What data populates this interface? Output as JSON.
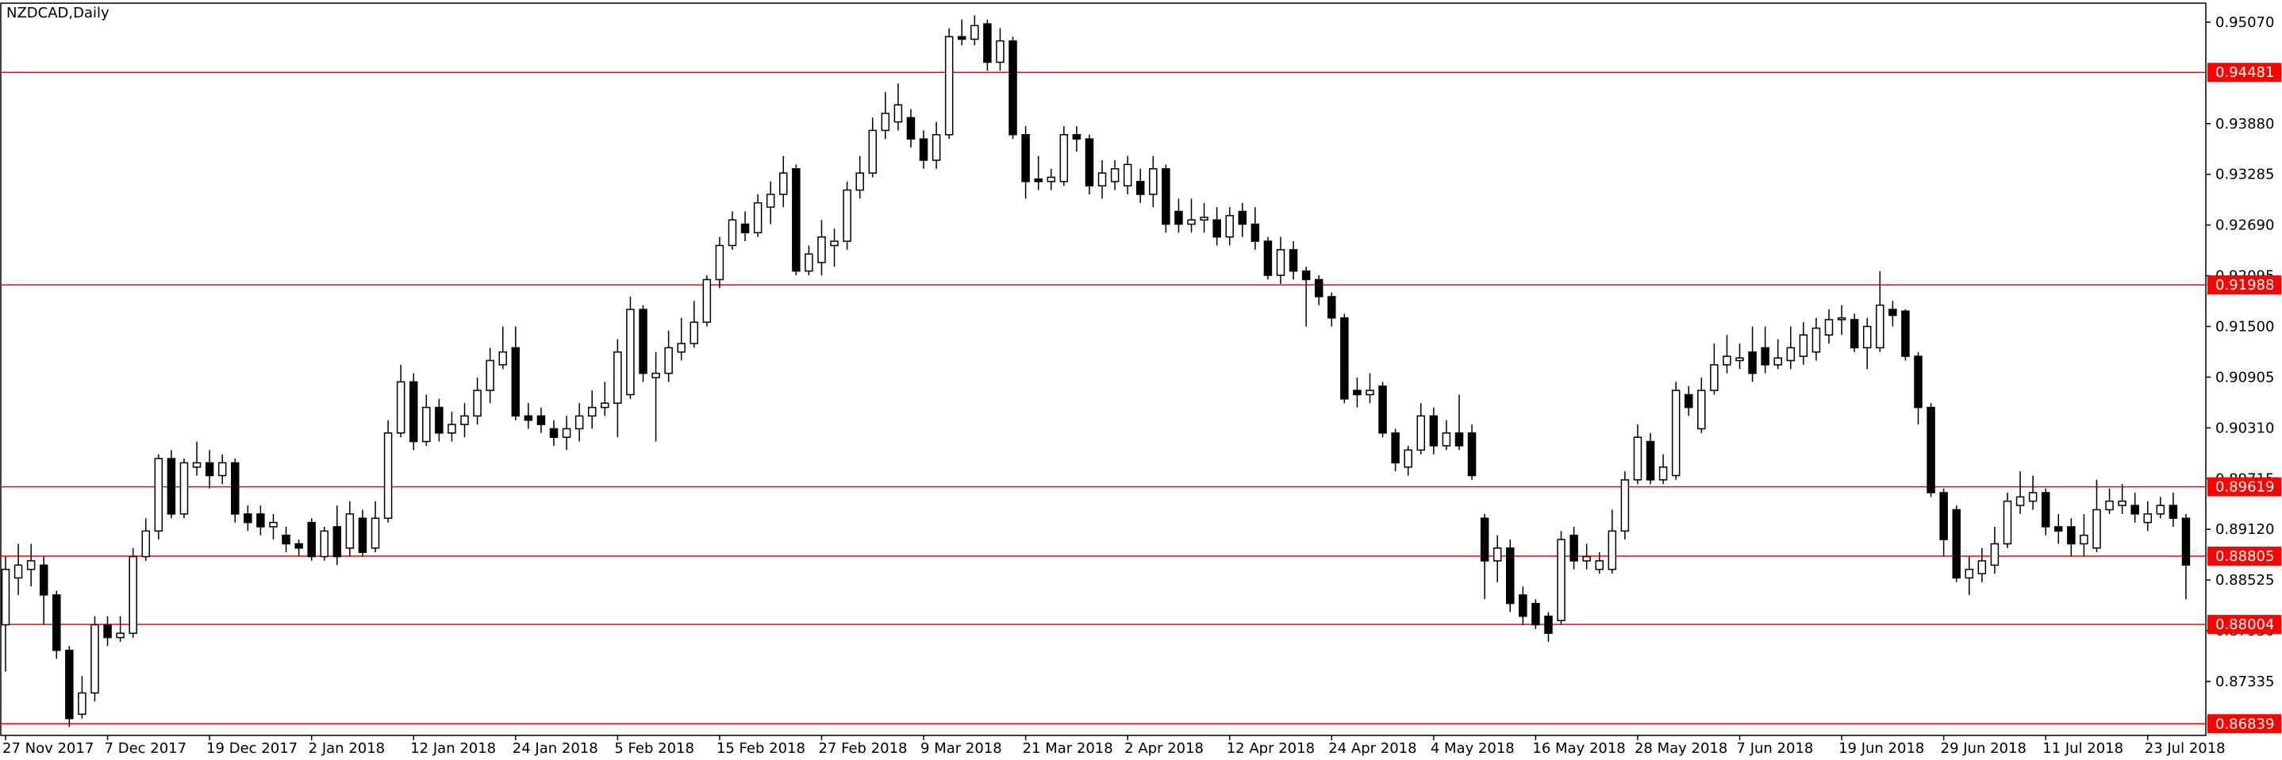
{
  "chart_data": {
    "type": "candlestick",
    "title": "NZDCAD,Daily",
    "up_color": "#ffffff",
    "down_color": "#000000",
    "level_color": "#ff0000",
    "categories": [
      "27 Nov 2017",
      null,
      null,
      null,
      null,
      null,
      null,
      null,
      "7 Dec 2017",
      null,
      null,
      null,
      null,
      null,
      null,
      null,
      "19 Dec 2017",
      null,
      null,
      null,
      null,
      null,
      null,
      null,
      "2 Jan 2018",
      null,
      null,
      null,
      null,
      null,
      null,
      null,
      "12 Jan 2018",
      null,
      null,
      null,
      null,
      null,
      null,
      null,
      "24 Jan 2018",
      null,
      null,
      null,
      null,
      null,
      null,
      null,
      "5 Feb 2018",
      null,
      null,
      null,
      null,
      null,
      null,
      null,
      "15 Feb 2018",
      null,
      null,
      null,
      null,
      null,
      null,
      null,
      "27 Feb 2018",
      null,
      null,
      null,
      null,
      null,
      null,
      null,
      "9 Mar 2018",
      null,
      null,
      null,
      null,
      null,
      null,
      null,
      "21 Mar 2018",
      null,
      null,
      null,
      null,
      null,
      null,
      null,
      "2 Apr 2018",
      null,
      null,
      null,
      null,
      null,
      null,
      null,
      "12 Apr 2018",
      null,
      null,
      null,
      null,
      null,
      null,
      null,
      "24 Apr 2018",
      null,
      null,
      null,
      null,
      null,
      null,
      null,
      "4 May 2018",
      null,
      null,
      null,
      null,
      null,
      null,
      null,
      "16 May 2018",
      null,
      null,
      null,
      null,
      null,
      null,
      null,
      "28 May 2018",
      null,
      null,
      null,
      null,
      null,
      null,
      null,
      "7 Jun 2018",
      null,
      null,
      null,
      null,
      null,
      null,
      null,
      "19 Jun 2018",
      null,
      null,
      null,
      null,
      null,
      null,
      null,
      "29 Jun 2018",
      null,
      null,
      null,
      null,
      null,
      null,
      null,
      "11 Jul 2018",
      null,
      null,
      null,
      null,
      null,
      null,
      null,
      "23 Jul 2018",
      null,
      null,
      null
    ],
    "open": [
      0.88,
      0.8855,
      0.8865,
      0.887,
      0.8835,
      0.877,
      0.8695,
      0.872,
      0.88,
      0.8785,
      0.879,
      0.888,
      0.891,
      0.8995,
      0.893,
      0.8985,
      0.899,
      0.8975,
      0.899,
      0.893,
      0.893,
      0.8915,
      0.8905,
      0.8895,
      0.892,
      0.888,
      0.8915,
      0.889,
      0.8925,
      0.889,
      0.8925,
      0.9025,
      0.9085,
      0.9015,
      0.9055,
      0.9025,
      0.9035,
      0.9045,
      0.9075,
      0.9105,
      0.9125,
      0.9045,
      0.9045,
      0.903,
      0.902,
      0.903,
      0.9045,
      0.9055,
      0.906,
      0.907,
      0.917,
      0.909,
      0.9095,
      0.912,
      0.913,
      0.9155,
      0.9205,
      0.9245,
      0.927,
      0.926,
      0.929,
      0.9305,
      0.9335,
      0.9215,
      0.9225,
      0.9245,
      0.925,
      0.931,
      0.933,
      0.938,
      0.939,
      0.9395,
      0.937,
      0.9345,
      0.9375,
      0.949,
      0.9487,
      0.9505,
      0.946,
      0.9485,
      0.9375,
      0.9323,
      0.932,
      0.932,
      0.9375,
      0.937,
      0.9315,
      0.932,
      0.9315,
      0.932,
      0.9305,
      0.9335,
      0.9285,
      0.927,
      0.9275,
      0.9275,
      0.9255,
      0.9285,
      0.927,
      0.925,
      0.921,
      0.924,
      0.9215,
      0.9205,
      0.9185,
      0.916,
      0.9075,
      0.907,
      0.908,
      0.9025,
      0.8985,
      0.9005,
      0.9045,
      0.901,
      0.9025,
      0.9025,
      0.8925,
      0.8875,
      0.889,
      0.8835,
      0.8825,
      0.881,
      0.8805,
      0.8905,
      0.8875,
      0.8865,
      0.8865,
      0.891,
      0.897,
      0.9015,
      0.897,
      0.8975,
      0.907,
      0.903,
      0.9075,
      0.9105,
      0.911,
      0.912,
      0.9125,
      0.9105,
      0.911,
      0.9115,
      0.912,
      0.914,
      0.9158,
      0.9158,
      0.9125,
      0.9125,
      0.917,
      0.9168,
      0.9115,
      0.9055,
      0.8955,
      0.8935,
      0.8855,
      0.886,
      0.887,
      0.8895,
      0.894,
      0.8945,
      0.8955,
      0.8915,
      0.8915,
      0.8895,
      0.889,
      0.8935,
      0.894,
      0.894,
      0.892,
      0.893,
      0.894,
      0.8925
    ],
    "high": [
      0.888,
      0.8895,
      0.8895,
      0.888,
      0.884,
      0.8775,
      0.874,
      0.881,
      0.881,
      0.881,
      0.889,
      0.8925,
      0.9,
      0.9005,
      0.8995,
      0.9015,
      0.9005,
      0.9,
      0.8995,
      0.894,
      0.894,
      0.893,
      0.8915,
      0.89,
      0.8925,
      0.8915,
      0.894,
      0.8945,
      0.8935,
      0.8945,
      0.904,
      0.9105,
      0.9095,
      0.907,
      0.9065,
      0.905,
      0.906,
      0.909,
      0.9125,
      0.915,
      0.915,
      0.906,
      0.9055,
      0.904,
      0.9045,
      0.906,
      0.9075,
      0.9085,
      0.9135,
      0.9185,
      0.9175,
      0.912,
      0.9145,
      0.916,
      0.918,
      0.921,
      0.9255,
      0.9285,
      0.9285,
      0.9305,
      0.932,
      0.935,
      0.934,
      0.9245,
      0.9275,
      0.9265,
      0.932,
      0.935,
      0.9395,
      0.9425,
      0.9435,
      0.9405,
      0.938,
      0.939,
      0.95,
      0.951,
      0.9515,
      0.951,
      0.95,
      0.949,
      0.9385,
      0.935,
      0.9335,
      0.9385,
      0.9385,
      0.9375,
      0.9345,
      0.9345,
      0.935,
      0.9335,
      0.935,
      0.934,
      0.93,
      0.93,
      0.9295,
      0.929,
      0.929,
      0.9295,
      0.929,
      0.9255,
      0.9255,
      0.925,
      0.922,
      0.921,
      0.919,
      0.9165,
      0.909,
      0.9095,
      0.9085,
      0.903,
      0.901,
      0.906,
      0.9055,
      0.904,
      0.907,
      0.9035,
      0.893,
      0.8905,
      0.89,
      0.8845,
      0.883,
      0.8815,
      0.891,
      0.8915,
      0.8895,
      0.8885,
      0.8935,
      0.898,
      0.9035,
      0.9025,
      0.9,
      0.9085,
      0.908,
      0.909,
      0.913,
      0.914,
      0.913,
      0.915,
      0.915,
      0.9135,
      0.915,
      0.9155,
      0.916,
      0.917,
      0.9175,
      0.9165,
      0.916,
      0.9215,
      0.918,
      0.917,
      0.912,
      0.906,
      0.896,
      0.894,
      0.888,
      0.889,
      0.8915,
      0.8955,
      0.898,
      0.8975,
      0.896,
      0.893,
      0.8925,
      0.893,
      0.897,
      0.896,
      0.8965,
      0.8955,
      0.8945,
      0.895,
      0.8955,
      0.893
    ],
    "low": [
      0.8745,
      0.8835,
      0.8845,
      0.88,
      0.876,
      0.868,
      0.869,
      0.871,
      0.8775,
      0.878,
      0.8785,
      0.8875,
      0.89,
      0.8925,
      0.8925,
      0.8975,
      0.896,
      0.8965,
      0.892,
      0.891,
      0.8905,
      0.89,
      0.8885,
      0.888,
      0.8875,
      0.8875,
      0.887,
      0.888,
      0.888,
      0.8885,
      0.892,
      0.902,
      0.9005,
      0.901,
      0.9015,
      0.9015,
      0.902,
      0.9035,
      0.906,
      0.91,
      0.904,
      0.903,
      0.9025,
      0.901,
      0.9005,
      0.9015,
      0.903,
      0.9045,
      0.902,
      0.9065,
      0.9085,
      0.9015,
      0.9085,
      0.911,
      0.9125,
      0.915,
      0.9195,
      0.924,
      0.925,
      0.9255,
      0.927,
      0.929,
      0.921,
      0.921,
      0.921,
      0.922,
      0.924,
      0.93,
      0.9325,
      0.937,
      0.938,
      0.936,
      0.9335,
      0.9335,
      0.937,
      0.948,
      0.948,
      0.945,
      0.945,
      0.937,
      0.93,
      0.931,
      0.931,
      0.9315,
      0.9355,
      0.9305,
      0.93,
      0.931,
      0.9305,
      0.9295,
      0.929,
      0.926,
      0.926,
      0.926,
      0.926,
      0.9245,
      0.9245,
      0.9255,
      0.924,
      0.9205,
      0.92,
      0.9205,
      0.915,
      0.9175,
      0.915,
      0.906,
      0.9055,
      0.906,
      0.902,
      0.898,
      0.8975,
      0.9,
      0.9,
      0.9005,
      0.9005,
      0.897,
      0.883,
      0.885,
      0.8815,
      0.88,
      0.8795,
      0.878,
      0.88,
      0.8865,
      0.8865,
      0.886,
      0.886,
      0.89,
      0.8965,
      0.8965,
      0.8965,
      0.897,
      0.9045,
      0.9025,
      0.907,
      0.9095,
      0.91,
      0.9085,
      0.9095,
      0.91,
      0.91,
      0.9105,
      0.911,
      0.913,
      0.914,
      0.912,
      0.91,
      0.912,
      0.915,
      0.911,
      0.9035,
      0.895,
      0.888,
      0.885,
      0.8835,
      0.885,
      0.886,
      0.889,
      0.893,
      0.8935,
      0.8905,
      0.8895,
      0.888,
      0.888,
      0.8885,
      0.893,
      0.893,
      0.892,
      0.891,
      0.8925,
      0.8915,
      0.883
    ],
    "close": [
      0.8865,
      0.887,
      0.8875,
      0.8835,
      0.877,
      0.869,
      0.872,
      0.88,
      0.8785,
      0.879,
      0.888,
      0.891,
      0.8995,
      0.893,
      0.899,
      0.899,
      0.8975,
      0.899,
      0.893,
      0.892,
      0.8915,
      0.892,
      0.8895,
      0.889,
      0.888,
      0.891,
      0.888,
      0.893,
      0.8885,
      0.8925,
      0.9025,
      0.9085,
      0.9015,
      0.9055,
      0.9025,
      0.9035,
      0.9045,
      0.9075,
      0.911,
      0.912,
      0.9045,
      0.904,
      0.9035,
      0.902,
      0.903,
      0.9045,
      0.9055,
      0.906,
      0.912,
      0.917,
      0.9095,
      0.9095,
      0.9125,
      0.913,
      0.9155,
      0.9205,
      0.9245,
      0.9275,
      0.926,
      0.9295,
      0.9305,
      0.933,
      0.9215,
      0.9235,
      0.9255,
      0.925,
      0.931,
      0.933,
      0.938,
      0.94,
      0.941,
      0.937,
      0.9345,
      0.9375,
      0.949,
      0.9487,
      0.9503,
      0.946,
      0.9485,
      0.9375,
      0.932,
      0.932,
      0.9325,
      0.9375,
      0.937,
      0.9315,
      0.933,
      0.9335,
      0.934,
      0.9305,
      0.9335,
      0.927,
      0.927,
      0.9275,
      0.9278,
      0.9255,
      0.928,
      0.927,
      0.925,
      0.921,
      0.924,
      0.9215,
      0.9205,
      0.9185,
      0.916,
      0.9065,
      0.907,
      0.9075,
      0.9025,
      0.899,
      0.9005,
      0.9045,
      0.901,
      0.9025,
      0.901,
      0.8975,
      0.8875,
      0.889,
      0.8825,
      0.881,
      0.88,
      0.879,
      0.89,
      0.8875,
      0.888,
      0.8875,
      0.891,
      0.897,
      0.902,
      0.897,
      0.8985,
      0.9075,
      0.9055,
      0.9075,
      0.9105,
      0.9115,
      0.9113,
      0.9095,
      0.9105,
      0.9113,
      0.9125,
      0.914,
      0.9148,
      0.9158,
      0.916,
      0.9125,
      0.915,
      0.9175,
      0.9163,
      0.9115,
      0.9055,
      0.8955,
      0.89,
      0.8855,
      0.8865,
      0.8875,
      0.8895,
      0.8945,
      0.895,
      0.8955,
      0.8915,
      0.891,
      0.8895,
      0.8905,
      0.8935,
      0.8945,
      0.8945,
      0.893,
      0.893,
      0.894,
      0.8925,
      0.887
    ],
    "ylim": [
      0.86702,
      0.95293
    ],
    "yticks": [
      {
        "value": 0.9507,
        "label": "0.95070"
      },
      {
        "value": 0.9388,
        "label": "0.93880"
      },
      0.93285,
      {
        "value": 0.9269,
        "label": "0.92690"
      },
      0.92095,
      {
        "value": 0.915,
        "label": "0.91500"
      },
      0.90905,
      {
        "value": 0.9031,
        "label": "0.90310"
      },
      0.89715,
      {
        "value": 0.8912,
        "label": "0.89120"
      },
      0.88525,
      {
        "value": 0.8793,
        "label": "0.87930"
      },
      0.87335
    ],
    "levels": [
      0.94481,
      0.91988,
      0.89619,
      0.88805,
      0.88004,
      0.86839
    ]
  }
}
